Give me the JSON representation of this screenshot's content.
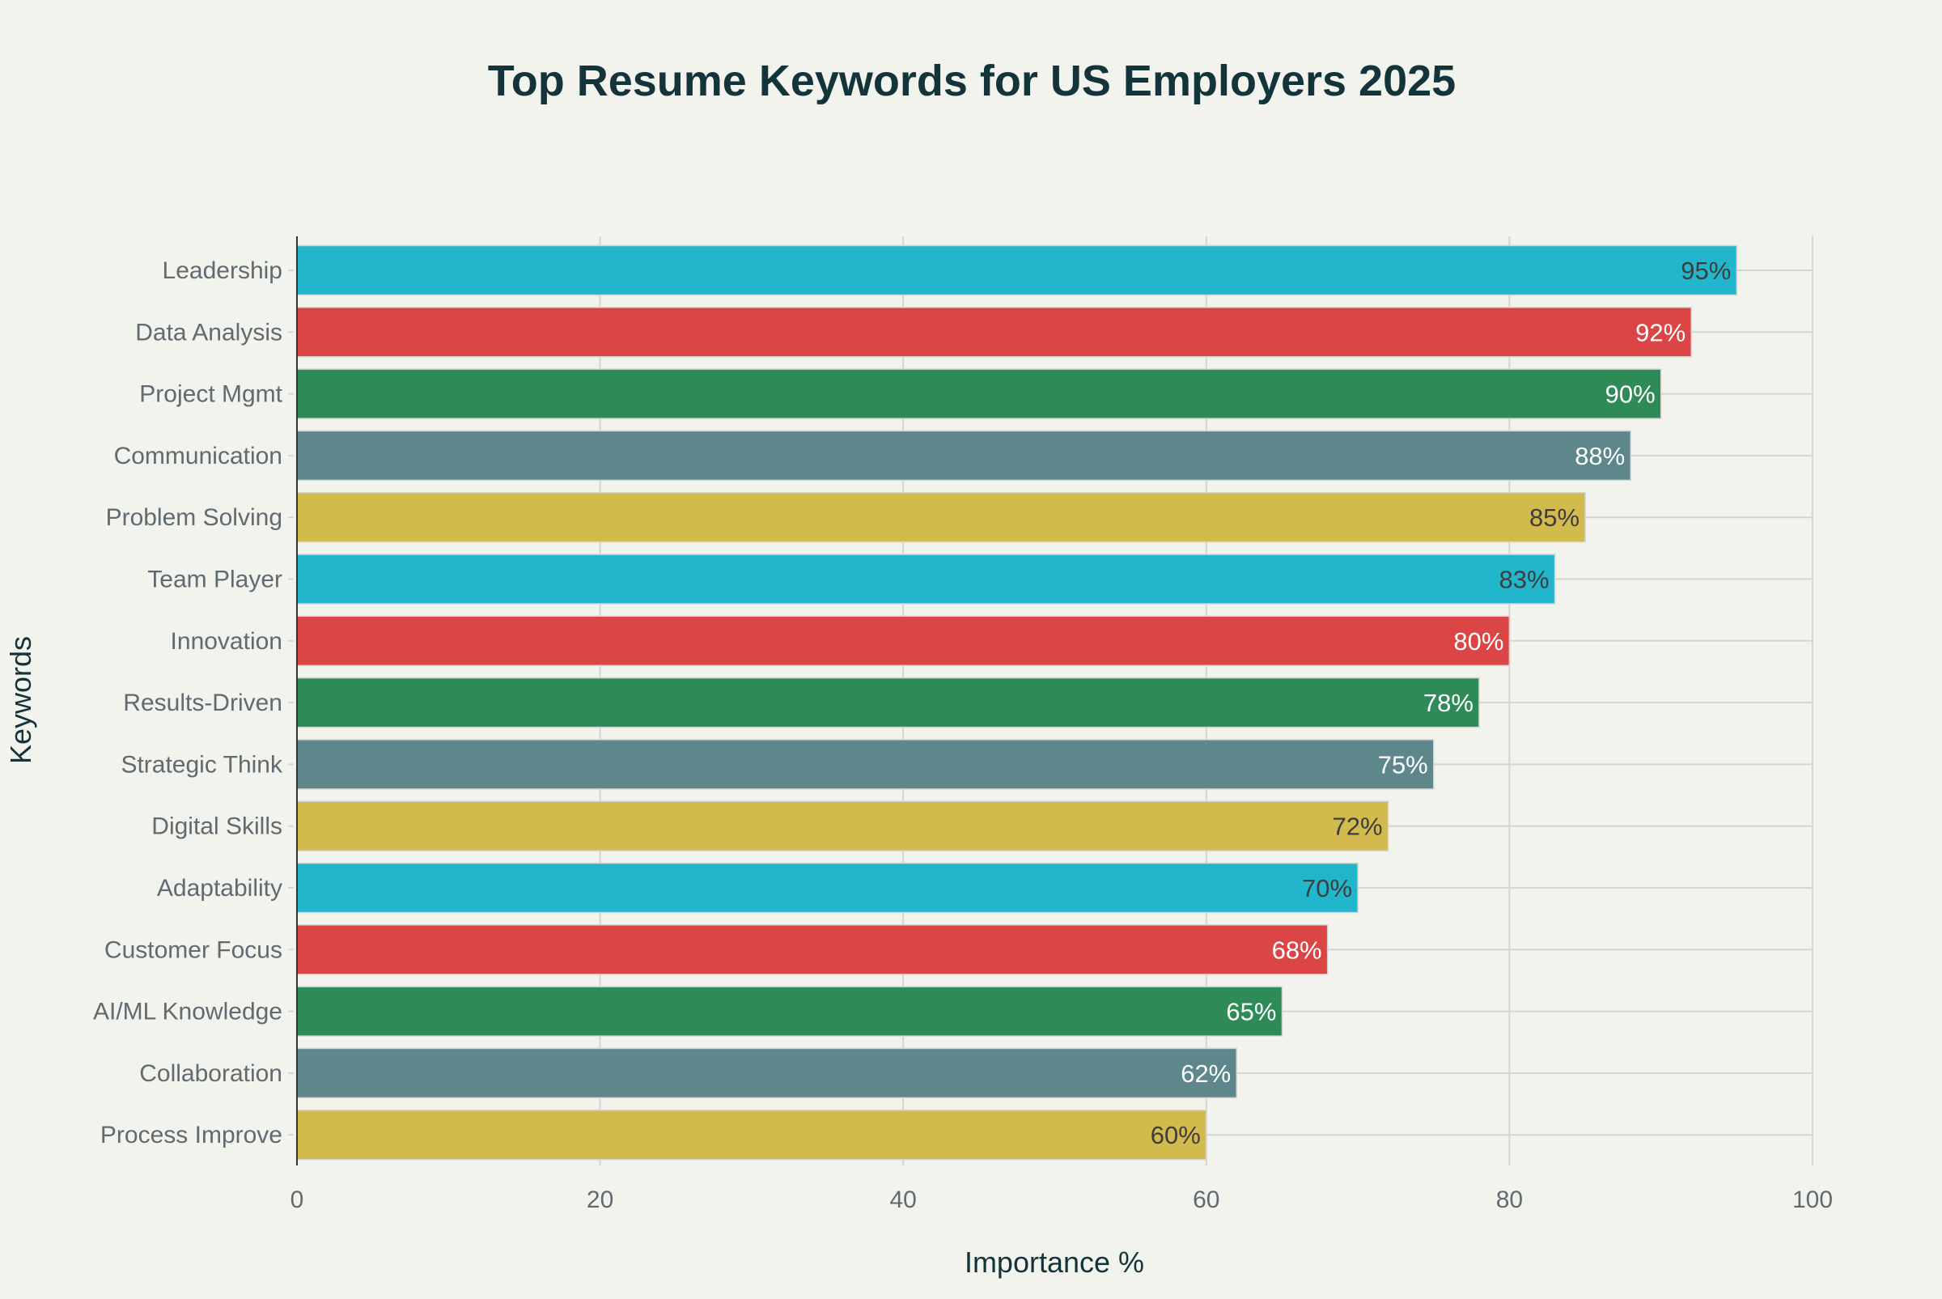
{
  "chart_data": {
    "type": "bar",
    "orientation": "horizontal",
    "title": "Top Resume Keywords for US Employers 2025",
    "xlabel": "Importance %",
    "ylabel": "Keywords",
    "xlim": [
      0,
      100
    ],
    "xticks": [
      0,
      20,
      40,
      60,
      80,
      100
    ],
    "grid": true,
    "categories": [
      "Leadership",
      "Data Analysis",
      "Project Mgmt",
      "Communication",
      "Problem Solving",
      "Team Player",
      "Innovation",
      "Results-Driven",
      "Strategic Think",
      "Digital Skills",
      "Adaptability",
      "Customer Focus",
      "AI/ML Knowledge",
      "Collaboration",
      "Process Improve"
    ],
    "values": [
      95,
      92,
      90,
      88,
      85,
      83,
      80,
      78,
      75,
      72,
      70,
      68,
      65,
      62,
      60
    ],
    "labels": [
      "95%",
      "92%",
      "90%",
      "88%",
      "85%",
      "83%",
      "80%",
      "78%",
      "75%",
      "72%",
      "70%",
      "68%",
      "65%",
      "62%",
      "60%"
    ],
    "colors": [
      "#21B6CC",
      "#DB4545",
      "#2E8B57",
      "#5D878B",
      "#D2BA4C"
    ],
    "label_colors": [
      "#3d3d3d",
      "#ffffff",
      "#ffffff",
      "#ffffff",
      "#3d3d3d"
    ]
  }
}
